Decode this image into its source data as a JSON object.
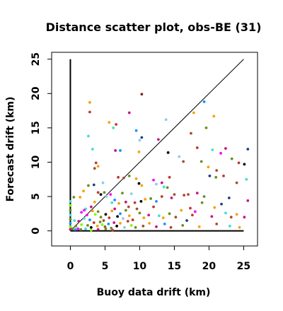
{
  "chart_data": {
    "type": "scatter",
    "title": "Distance scatter plot, obs-BE (31)",
    "xlabel": "Buoy data drift (km)",
    "ylabel": "Forecast drift (km)",
    "xlim": [
      -2.7,
      27
    ],
    "ylim": [
      -2.2,
      26
    ],
    "xticks": [
      0,
      5,
      10,
      15,
      20,
      25
    ],
    "yticks": [
      0,
      5,
      10,
      15,
      20,
      25
    ],
    "xtick_labels": [
      "0",
      "5",
      "10",
      "15",
      "20",
      "25"
    ],
    "ytick_labels": [
      "0",
      "5",
      "10",
      "15",
      "20",
      "25"
    ],
    "grid": false,
    "reference_lines": [
      {
        "x": [
          0,
          25
        ],
        "y": [
          0,
          25
        ]
      },
      {
        "x": [
          0,
          0
        ],
        "y": [
          0,
          25
        ]
      },
      {
        "x": [
          0,
          25
        ],
        "y": [
          0,
          0
        ]
      }
    ],
    "points": [
      {
        "x": 2.8,
        "y": 18.7,
        "color": "#f5a200"
      },
      {
        "x": 2.8,
        "y": 17.3,
        "color": "#c0392b"
      },
      {
        "x": 10.3,
        "y": 19.9,
        "color": "#8b1a1a"
      },
      {
        "x": 8.5,
        "y": 17.2,
        "color": "#c71585"
      },
      {
        "x": 5.6,
        "y": 15.8,
        "color": "#f5a200"
      },
      {
        "x": 6.6,
        "y": 15.5,
        "color": "#c0392b"
      },
      {
        "x": 6.2,
        "y": 15.0,
        "color": "#40e0d0"
      },
      {
        "x": 9.5,
        "y": 14.6,
        "color": "#1e90ff"
      },
      {
        "x": 13.8,
        "y": 16.2,
        "color": "#87ceeb"
      },
      {
        "x": 17.8,
        "y": 17.2,
        "color": "#f5a200"
      },
      {
        "x": 19.3,
        "y": 18.8,
        "color": "#1e90ff"
      },
      {
        "x": 20.7,
        "y": 16.7,
        "color": "#f5a200"
      },
      {
        "x": 19.6,
        "y": 15.0,
        "color": "#6b8e23"
      },
      {
        "x": 17.4,
        "y": 14.2,
        "color": "#a0522d"
      },
      {
        "x": 2.6,
        "y": 13.8,
        "color": "#40e0d0"
      },
      {
        "x": 10.0,
        "y": 13.2,
        "color": "#87ceeb"
      },
      {
        "x": 10.3,
        "y": 13.6,
        "color": "#1e3f8a"
      },
      {
        "x": 12.7,
        "y": 13.3,
        "color": "#c71585"
      },
      {
        "x": 3.2,
        "y": 11.9,
        "color": "#40e0d0"
      },
      {
        "x": 6.5,
        "y": 11.7,
        "color": "#c71585"
      },
      {
        "x": 7.2,
        "y": 11.7,
        "color": "#1e90ff"
      },
      {
        "x": 9.9,
        "y": 11.5,
        "color": "#f5a200"
      },
      {
        "x": 14.1,
        "y": 11.4,
        "color": "#000000"
      },
      {
        "x": 15.7,
        "y": 10.8,
        "color": "#87ceeb"
      },
      {
        "x": 18.3,
        "y": 12.1,
        "color": "#c0392b"
      },
      {
        "x": 20.5,
        "y": 11.8,
        "color": "#40e0d0"
      },
      {
        "x": 21.7,
        "y": 11.3,
        "color": "#ff00ff"
      },
      {
        "x": 22.4,
        "y": 12.0,
        "color": "#c71585"
      },
      {
        "x": 25.6,
        "y": 11.9,
        "color": "#1e3f8a"
      },
      {
        "x": 18.9,
        "y": 10.1,
        "color": "#6b8e23"
      },
      {
        "x": 16.3,
        "y": 10.1,
        "color": "#a0522d"
      },
      {
        "x": 3.7,
        "y": 9.9,
        "color": "#c0392b"
      },
      {
        "x": 4.0,
        "y": 9.4,
        "color": "#f5a200"
      },
      {
        "x": 3.5,
        "y": 9.1,
        "color": "#a0522d"
      },
      {
        "x": 23.3,
        "y": 10.5,
        "color": "#6b8e23"
      },
      {
        "x": 24.3,
        "y": 9.9,
        "color": "#c0392b"
      },
      {
        "x": 25.1,
        "y": 9.7,
        "color": "#000000"
      },
      {
        "x": 19.9,
        "y": 9.3,
        "color": "#f5a200"
      },
      {
        "x": 21.1,
        "y": 8.8,
        "color": "#a0522d"
      },
      {
        "x": 20.1,
        "y": 8.0,
        "color": "#1e3f8a"
      },
      {
        "x": 21.0,
        "y": 7.8,
        "color": "#6b8e23"
      },
      {
        "x": 22.1,
        "y": 8.0,
        "color": "#c0392b"
      },
      {
        "x": 25.4,
        "y": 7.5,
        "color": "#40e0d0"
      },
      {
        "x": 24.0,
        "y": 7.0,
        "color": "#a0522d"
      },
      {
        "x": 2.6,
        "y": 6.6,
        "color": "#6b8e23"
      },
      {
        "x": 3.4,
        "y": 6.7,
        "color": "#1e3f8a"
      },
      {
        "x": 4.7,
        "y": 7.0,
        "color": "#87ceeb"
      },
      {
        "x": 6.9,
        "y": 7.8,
        "color": "#c0392b"
      },
      {
        "x": 8.5,
        "y": 8.0,
        "color": "#6b8e23"
      },
      {
        "x": 7.7,
        "y": 7.7,
        "color": "#a0522d"
      },
      {
        "x": 9.5,
        "y": 7.6,
        "color": "#f5a200"
      },
      {
        "x": 9.9,
        "y": 6.9,
        "color": "#000000"
      },
      {
        "x": 10.3,
        "y": 6.6,
        "color": "#f5a200"
      },
      {
        "x": 12.0,
        "y": 7.4,
        "color": "#ff00ff"
      },
      {
        "x": 12.4,
        "y": 6.8,
        "color": "#87ceeb"
      },
      {
        "x": 13.2,
        "y": 7.0,
        "color": "#c71585"
      },
      {
        "x": 13.5,
        "y": 6.4,
        "color": "#40e0d0"
      },
      {
        "x": 14.3,
        "y": 7.8,
        "color": "#c0392b"
      },
      {
        "x": 14.0,
        "y": 6.3,
        "color": "#6b8e23"
      },
      {
        "x": 17.0,
        "y": 5.3,
        "color": "#a0522d"
      },
      {
        "x": 16.4,
        "y": 5.2,
        "color": "#c0392b"
      },
      {
        "x": 18.3,
        "y": 5.5,
        "color": "#c71585"
      },
      {
        "x": 19.3,
        "y": 5.0,
        "color": "#6b8e23"
      },
      {
        "x": 22.9,
        "y": 4.8,
        "color": "#1e3f8a"
      },
      {
        "x": 25.6,
        "y": 4.4,
        "color": "#c71585"
      },
      {
        "x": 0.5,
        "y": 4.9,
        "color": "#6b8e23"
      },
      {
        "x": 1.4,
        "y": 4.9,
        "color": "#f5a200"
      },
      {
        "x": 1.9,
        "y": 5.8,
        "color": "#f5a200"
      },
      {
        "x": 2.2,
        "y": 3.2,
        "color": "#40e0d0"
      },
      {
        "x": 3.0,
        "y": 3.5,
        "color": "#c71585"
      },
      {
        "x": 3.5,
        "y": 4.2,
        "color": "#f5a200"
      },
      {
        "x": 4.0,
        "y": 5.6,
        "color": "#c0392b"
      },
      {
        "x": 4.4,
        "y": 5.3,
        "color": "#000000"
      },
      {
        "x": 4.9,
        "y": 5.6,
        "color": "#6b8e23"
      },
      {
        "x": 5.2,
        "y": 5.0,
        "color": "#87ceeb"
      },
      {
        "x": 5.8,
        "y": 5.3,
        "color": "#ff00ff"
      },
      {
        "x": 6.0,
        "y": 4.1,
        "color": "#40e0d0"
      },
      {
        "x": 6.4,
        "y": 4.5,
        "color": "#1e90ff"
      },
      {
        "x": 7.0,
        "y": 4.0,
        "color": "#f5a200"
      },
      {
        "x": 7.5,
        "y": 5.5,
        "color": "#6b8e23"
      },
      {
        "x": 8.0,
        "y": 4.2,
        "color": "#c71585"
      },
      {
        "x": 8.4,
        "y": 3.5,
        "color": "#a0522d"
      },
      {
        "x": 8.8,
        "y": 5.4,
        "color": "#87ceeb"
      },
      {
        "x": 9.3,
        "y": 4.1,
        "color": "#c0392b"
      },
      {
        "x": 10.2,
        "y": 4.3,
        "color": "#000000"
      },
      {
        "x": 10.8,
        "y": 4.6,
        "color": "#f5a200"
      },
      {
        "x": 11.6,
        "y": 4.7,
        "color": "#6b8e23"
      },
      {
        "x": 12.4,
        "y": 4.3,
        "color": "#1e90ff"
      },
      {
        "x": 13.2,
        "y": 5.0,
        "color": "#c0392b"
      },
      {
        "x": 14.6,
        "y": 4.8,
        "color": "#c71585"
      },
      {
        "x": 15.0,
        "y": 5.3,
        "color": "#a0522d"
      },
      {
        "x": 16.0,
        "y": 3.0,
        "color": "#f5a200"
      },
      {
        "x": 17.3,
        "y": 3.3,
        "color": "#c0392b"
      },
      {
        "x": 18.0,
        "y": 2.8,
        "color": "#ff00ff"
      },
      {
        "x": 19.0,
        "y": 4.1,
        "color": "#6b8e23"
      },
      {
        "x": 20.8,
        "y": 3.4,
        "color": "#f5a200"
      },
      {
        "x": 21.8,
        "y": 3.9,
        "color": "#1e3f8a"
      },
      {
        "x": 22.4,
        "y": 2.6,
        "color": "#40e0d0"
      },
      {
        "x": 24.0,
        "y": 2.4,
        "color": "#f5a200"
      },
      {
        "x": 25.1,
        "y": 2.0,
        "color": "#c71585"
      },
      {
        "x": 1.6,
        "y": 2.7,
        "color": "#ff00ff"
      },
      {
        "x": 2.0,
        "y": 3.0,
        "color": "#ff00ff"
      },
      {
        "x": 2.4,
        "y": 2.3,
        "color": "#ff00ff"
      },
      {
        "x": 2.8,
        "y": 1.6,
        "color": "#1e90ff"
      },
      {
        "x": 3.2,
        "y": 2.9,
        "color": "#f5a200"
      },
      {
        "x": 3.6,
        "y": 2.4,
        "color": "#7cfc00"
      },
      {
        "x": 4.0,
        "y": 2.8,
        "color": "#6b8e23"
      },
      {
        "x": 4.4,
        "y": 2.0,
        "color": "#6b8e23"
      },
      {
        "x": 4.8,
        "y": 1.5,
        "color": "#a0522d"
      },
      {
        "x": 5.1,
        "y": 2.4,
        "color": "#000000"
      },
      {
        "x": 5.6,
        "y": 1.9,
        "color": "#c0392b"
      },
      {
        "x": 6.0,
        "y": 2.9,
        "color": "#f5a200"
      },
      {
        "x": 6.4,
        "y": 3.2,
        "color": "#c71585"
      },
      {
        "x": 6.8,
        "y": 2.1,
        "color": "#000000"
      },
      {
        "x": 7.2,
        "y": 2.5,
        "color": "#1e90ff"
      },
      {
        "x": 7.6,
        "y": 1.8,
        "color": "#87ceeb"
      },
      {
        "x": 8.0,
        "y": 3.0,
        "color": "#6b8e23"
      },
      {
        "x": 8.5,
        "y": 2.2,
        "color": "#f5a200"
      },
      {
        "x": 9.0,
        "y": 1.6,
        "color": "#c0392b"
      },
      {
        "x": 9.6,
        "y": 3.2,
        "color": "#a0522d"
      },
      {
        "x": 10.0,
        "y": 2.6,
        "color": "#6b8e23"
      },
      {
        "x": 10.6,
        "y": 1.9,
        "color": "#f5a200"
      },
      {
        "x": 11.3,
        "y": 2.3,
        "color": "#c71585"
      },
      {
        "x": 12.0,
        "y": 3.5,
        "color": "#c0392b"
      },
      {
        "x": 12.8,
        "y": 2.2,
        "color": "#40e0d0"
      },
      {
        "x": 13.4,
        "y": 1.9,
        "color": "#f5a200"
      },
      {
        "x": 14.3,
        "y": 2.5,
        "color": "#6b8e23"
      },
      {
        "x": 15.2,
        "y": 2.0,
        "color": "#a0522d"
      },
      {
        "x": 16.8,
        "y": 1.5,
        "color": "#1e3f8a"
      },
      {
        "x": 17.6,
        "y": 2.3,
        "color": "#c0392b"
      },
      {
        "x": 20.4,
        "y": 2.1,
        "color": "#c71585"
      },
      {
        "x": 23.2,
        "y": 2.0,
        "color": "#a0522d"
      },
      {
        "x": 0.6,
        "y": 1.5,
        "color": "#40e0d0"
      },
      {
        "x": 0.8,
        "y": 0.7,
        "color": "#6b8e23"
      },
      {
        "x": 1.2,
        "y": 1.4,
        "color": "#c71585"
      },
      {
        "x": 1.6,
        "y": 0.9,
        "color": "#7cfc00"
      },
      {
        "x": 2.0,
        "y": 1.8,
        "color": "#40e0d0"
      },
      {
        "x": 2.5,
        "y": 0.8,
        "color": "#6b8e23"
      },
      {
        "x": 3.0,
        "y": 0.5,
        "color": "#000000"
      },
      {
        "x": 3.4,
        "y": 1.2,
        "color": "#c0392b"
      },
      {
        "x": 3.9,
        "y": 0.7,
        "color": "#f5a200"
      },
      {
        "x": 4.3,
        "y": 1.3,
        "color": "#6b8e23"
      },
      {
        "x": 4.6,
        "y": 0.9,
        "color": "#7cfc00"
      },
      {
        "x": 5.0,
        "y": 0.6,
        "color": "#a0522d"
      },
      {
        "x": 5.5,
        "y": 1.0,
        "color": "#1e90ff"
      },
      {
        "x": 5.9,
        "y": 0.4,
        "color": "#6b8e23"
      },
      {
        "x": 6.3,
        "y": 1.2,
        "color": "#c71585"
      },
      {
        "x": 6.7,
        "y": 0.7,
        "color": "#000000"
      },
      {
        "x": 7.2,
        "y": 1.1,
        "color": "#f5a200"
      },
      {
        "x": 7.8,
        "y": 0.5,
        "color": "#87ceeb"
      },
      {
        "x": 8.3,
        "y": 1.4,
        "color": "#c0392b"
      },
      {
        "x": 8.8,
        "y": 0.8,
        "color": "#7cfc00"
      },
      {
        "x": 9.4,
        "y": 0.5,
        "color": "#6b8e23"
      },
      {
        "x": 10.5,
        "y": 0.7,
        "color": "#a0522d"
      },
      {
        "x": 11.4,
        "y": 1.1,
        "color": "#f5a200"
      },
      {
        "x": 12.4,
        "y": 0.6,
        "color": "#c71585"
      },
      {
        "x": 13.6,
        "y": 1.0,
        "color": "#1e90ff"
      },
      {
        "x": 14.5,
        "y": 0.5,
        "color": "#c0392b"
      },
      {
        "x": 16.2,
        "y": 0.8,
        "color": "#6b8e23"
      },
      {
        "x": 18.6,
        "y": 0.6,
        "color": "#f5a200"
      },
      {
        "x": 21.1,
        "y": 1.0,
        "color": "#a0522d"
      },
      {
        "x": 23.0,
        "y": 0.7,
        "color": "#40e0d0"
      },
      {
        "x": 24.4,
        "y": 0.5,
        "color": "#f5a200"
      },
      {
        "x": 0.3,
        "y": 0.3,
        "color": "#6b8e23"
      },
      {
        "x": 0.7,
        "y": 0.2,
        "color": "#1e90ff"
      },
      {
        "x": 1.1,
        "y": 0.3,
        "color": "#ff00ff"
      },
      {
        "x": 1.5,
        "y": 0.2,
        "color": "#6b8e23"
      },
      {
        "x": 2.2,
        "y": 0.3,
        "color": "#40e0d0"
      },
      {
        "x": 3.0,
        "y": 0.1,
        "color": "#7cfc00"
      },
      {
        "x": 4.0,
        "y": 0.2,
        "color": "#c71585"
      },
      {
        "x": 5.1,
        "y": 0.3,
        "color": "#6b8e23"
      },
      {
        "x": 6.1,
        "y": 0.1,
        "color": "#c0392b"
      },
      {
        "x": 0.0,
        "y": 4.3,
        "color": "#40e0d0"
      },
      {
        "x": 0.0,
        "y": 3.7,
        "color": "#7cfc00"
      },
      {
        "x": 0.0,
        "y": 3.0,
        "color": "#6b8e23"
      },
      {
        "x": 0.0,
        "y": 2.3,
        "color": "#40e0d0"
      },
      {
        "x": 0.0,
        "y": 1.7,
        "color": "#6b8e23"
      },
      {
        "x": 0.0,
        "y": 1.1,
        "color": "#1e90ff"
      },
      {
        "x": 0.0,
        "y": 0.6,
        "color": "#7cfc00"
      },
      {
        "x": 0.0,
        "y": 0.2,
        "color": "#c71585"
      }
    ]
  }
}
